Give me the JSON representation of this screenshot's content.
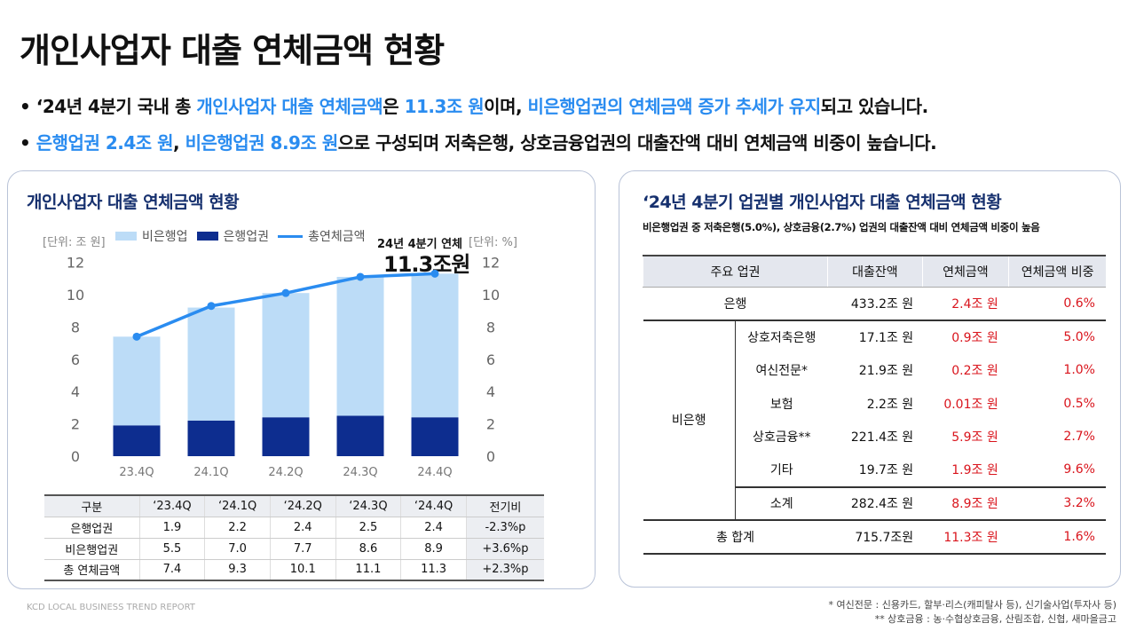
{
  "title": "개인사업자 대출 연체금액 현황",
  "bullets": [
    {
      "p1": "‘24년 4분기 국내 총 ",
      "h1": "개인사업자 대출 연체금액",
      "p2": "은 ",
      "h2": "11.3조 원",
      "p3": "이며, ",
      "h3": "비은행업권의 연체금액 증가 추세가 유지",
      "p4": "되고 있습니다."
    },
    {
      "h1": "은행업권 2.4조 원",
      "p1": ", ",
      "h2": "비은행업권 8.9조 원",
      "p2": "으로 구성되며 저축은행, 상호금융업권의 대출잔액 대비 연체금액 비중이 높습니다."
    }
  ],
  "left_panel": {
    "title": "개인사업자 대출 연체금액 현황",
    "unit_left": "[단위: 조 원]",
    "unit_right": "[단위: %]",
    "callout_label": "24년 4분기 연체",
    "callout_value": "11.3조원"
  },
  "chart_data": {
    "type": "bar",
    "stacked": true,
    "categories": [
      "23.4Q",
      "24.1Q",
      "24.2Q",
      "24.3Q",
      "24.4Q"
    ],
    "series": [
      {
        "name": "비은행업",
        "color": "#bcdcf7",
        "values": [
          5.5,
          7.0,
          7.7,
          8.6,
          8.9
        ]
      },
      {
        "name": "은행업권",
        "color": "#0d2d8f",
        "values": [
          1.9,
          2.2,
          2.4,
          2.5,
          2.4
        ]
      },
      {
        "name": "총연체금액",
        "type": "line",
        "color": "#2a8cf0",
        "values": [
          7.4,
          9.3,
          10.1,
          11.1,
          11.3
        ]
      }
    ],
    "ylim": [
      0,
      12
    ],
    "yticks": [
      "0",
      "2",
      "4",
      "6",
      "8",
      "10",
      "12"
    ],
    "legend": "top"
  },
  "left_table": {
    "header": [
      "구분",
      "‘23.4Q",
      "‘24.1Q",
      "‘24.2Q",
      "‘24.3Q",
      "‘24.4Q",
      "전기비"
    ],
    "rows": [
      [
        "은행업권",
        "1.9",
        "2.2",
        "2.4",
        "2.5",
        "2.4",
        "-2.3%p"
      ],
      [
        "비은행업권",
        "5.5",
        "7.0",
        "7.7",
        "8.6",
        "8.9",
        "+3.6%p"
      ],
      [
        "총 연체금액",
        "7.4",
        "9.3",
        "10.1",
        "11.1",
        "11.3",
        "+2.3%p"
      ]
    ]
  },
  "right_panel": {
    "title": "‘24년 4분기 업권별 개인사업자 대출 연체금액 현황",
    "subtitle": "비은행업권 중 저축은행(5.0%), 상호금융(2.7%) 업권의 대출잔액 대비 연체금액 비중이 높음",
    "header": [
      "주요 업권",
      "대출잔액",
      "연체금액",
      "연체금액 비중"
    ],
    "bank": [
      "은행",
      "433.2조 원",
      "2.4조 원",
      "0.6%"
    ],
    "nonbank_label": "비은행",
    "nonbank": [
      [
        "상호저축은행",
        "17.1조 원",
        "0.9조 원",
        "5.0%"
      ],
      [
        "여신전문*",
        "21.9조 원",
        "0.2조 원",
        "1.0%"
      ],
      [
        "보험",
        "2.2조 원",
        "0.01조 원",
        "0.5%"
      ],
      [
        "상호금융**",
        "221.4조 원",
        "5.9조 원",
        "2.7%"
      ],
      [
        "기타",
        "19.7조 원",
        "1.9조 원",
        "9.6%"
      ]
    ],
    "subtotal": [
      "소계",
      "282.4조 원",
      "8.9조 원",
      "3.2%"
    ],
    "total": [
      "총 합계",
      "715.7조원",
      "11.3조 원",
      "1.6%"
    ]
  },
  "footer": {
    "brand": "KCD LOCAL BUSINESS TREND REPORT",
    "note1": "* 여신전문 : 신용카드, 할부·리스(캐피탈사 등), 신기술사업(투자사 등)",
    "note2": "** 상호금융 : 농·수협상호금융, 산림조합, 신협, 새마을금고"
  }
}
